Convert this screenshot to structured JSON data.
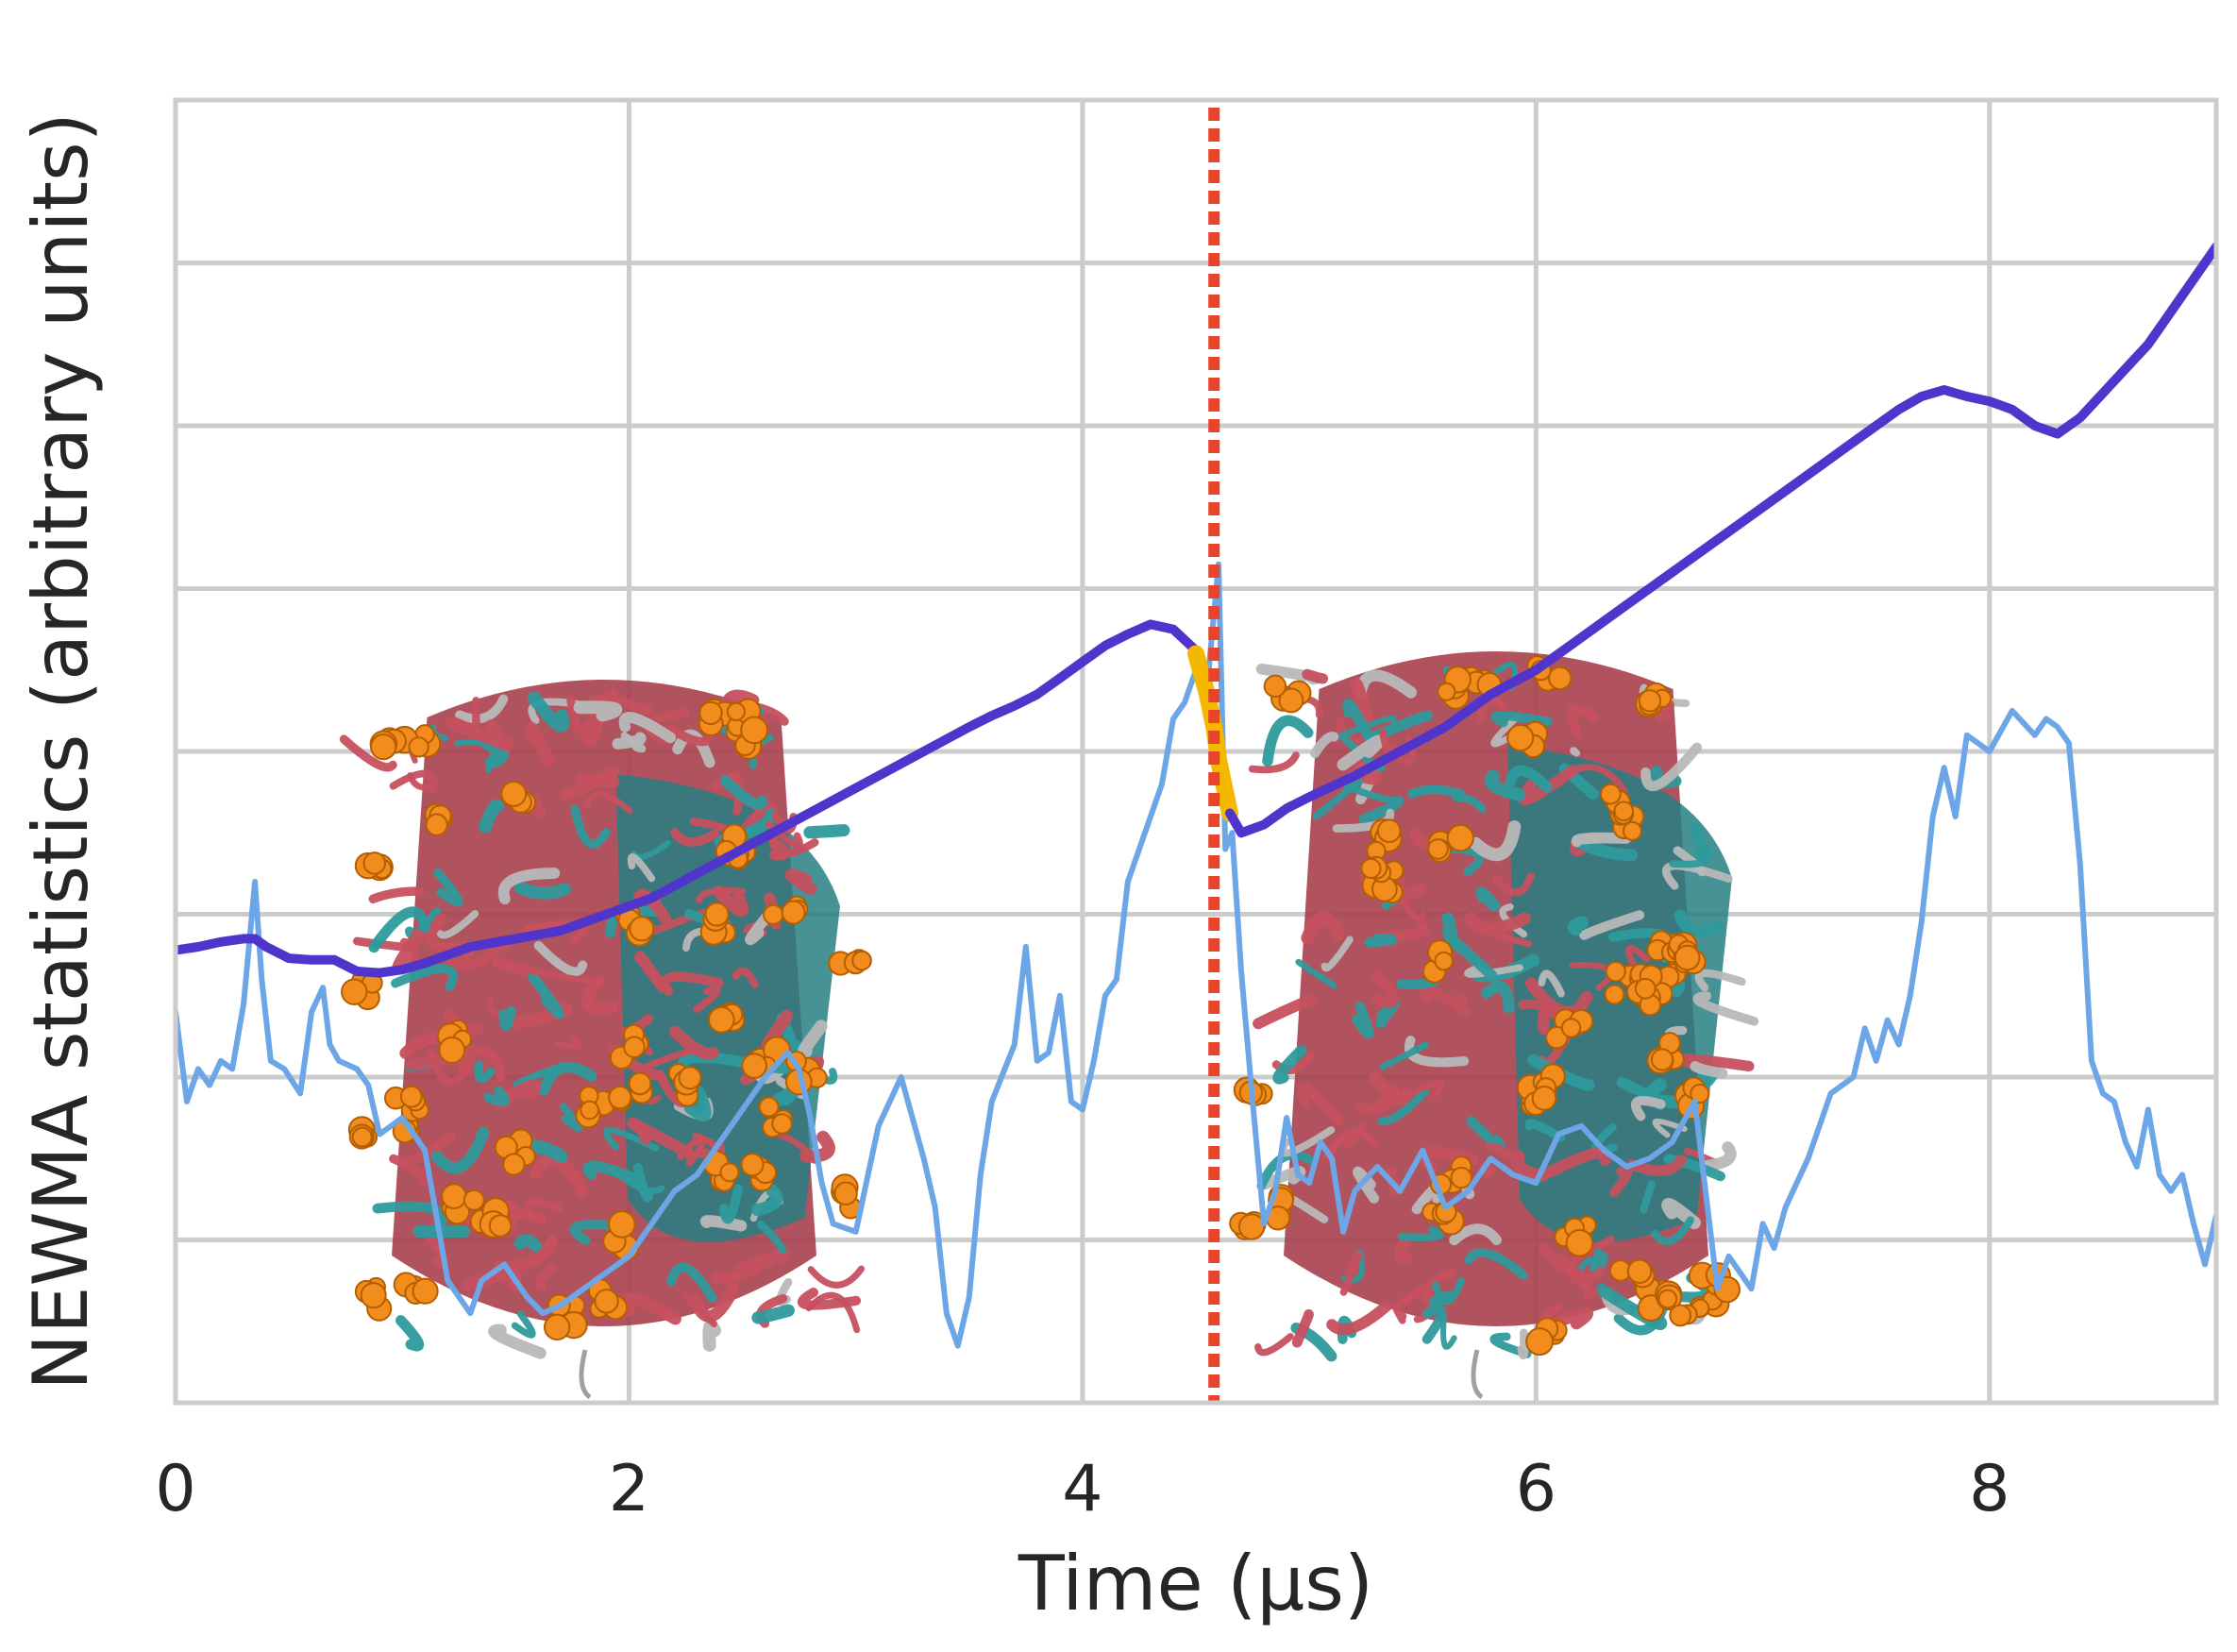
{
  "chart_data": {
    "type": "line",
    "title": "",
    "xlabel": "Time ($\\mu$s)",
    "ylabel": "NEWMA statistics (arbitrary units)",
    "xlim": [
      0,
      9
    ],
    "ylim": [
      0,
      8
    ],
    "xticks": [
      0,
      2,
      4,
      6,
      8
    ],
    "xtick_labels": [
      "0",
      "2",
      "4",
      "6",
      "8"
    ],
    "yticks": [
      0,
      1,
      2,
      3,
      4,
      5,
      6,
      7,
      8
    ],
    "ytick_labels": [],
    "grid": true,
    "legend": "none",
    "change_point": {
      "x": 4.58,
      "style": "dotted",
      "color": "#e8432b"
    },
    "series": [
      {
        "style": "thin",
        "color": "#6ca6e6",
        "x": [
          0.0,
          0.05,
          0.1,
          0.15,
          0.2,
          0.25,
          0.3,
          0.35,
          0.38,
          0.42,
          0.48,
          0.55,
          0.6,
          0.65,
          0.68,
          0.72,
          0.8,
          0.85,
          0.9,
          0.95,
          1.0,
          1.1,
          1.2,
          1.3,
          1.35,
          1.45,
          1.55,
          1.62,
          1.7,
          1.8,
          1.9,
          2.0,
          2.1,
          2.2,
          2.3,
          2.4,
          2.5,
          2.6,
          2.7,
          2.75,
          2.8,
          2.85,
          2.9,
          3.0,
          3.1,
          3.2,
          3.3,
          3.35,
          3.4,
          3.45,
          3.5,
          3.55,
          3.6,
          3.7,
          3.75,
          3.8,
          3.85,
          3.9,
          3.95,
          4.0,
          4.05,
          4.1,
          4.15,
          4.2,
          4.3,
          4.35,
          4.4,
          4.45,
          4.5,
          4.55,
          4.6,
          4.63,
          4.66,
          4.7,
          4.75,
          4.8,
          4.85,
          4.9,
          4.95,
          5.0,
          5.05,
          5.1,
          5.15,
          5.2,
          5.3,
          5.4,
          5.5,
          5.6,
          5.7,
          5.8,
          5.9,
          6.0,
          6.1,
          6.2,
          6.3,
          6.4,
          6.5,
          6.6,
          6.7,
          6.8,
          6.85,
          6.9,
          6.95,
          7.0,
          7.05,
          7.1,
          7.2,
          7.3,
          7.4,
          7.45,
          7.5,
          7.55,
          7.6,
          7.65,
          7.7,
          7.75,
          7.8,
          7.85,
          7.9,
          8.0,
          8.1,
          8.2,
          8.25,
          8.3,
          8.35,
          8.4,
          8.45,
          8.5,
          8.55,
          8.6,
          8.65,
          8.7,
          8.75,
          8.8,
          8.85,
          8.9,
          8.95,
          9.0
        ],
        "y": [
          2.4,
          1.85,
          2.05,
          1.95,
          2.1,
          2.05,
          2.45,
          3.2,
          2.6,
          2.1,
          2.05,
          1.9,
          2.4,
          2.55,
          2.2,
          2.1,
          2.05,
          1.95,
          1.65,
          1.7,
          1.75,
          1.55,
          0.75,
          0.55,
          0.75,
          0.85,
          0.65,
          0.55,
          0.6,
          0.7,
          0.8,
          0.9,
          1.1,
          1.3,
          1.4,
          1.6,
          1.8,
          2.0,
          2.15,
          2.05,
          1.75,
          1.35,
          1.1,
          1.05,
          1.7,
          2.0,
          1.5,
          1.2,
          0.55,
          0.35,
          0.65,
          1.4,
          1.85,
          2.2,
          2.8,
          2.1,
          2.15,
          2.5,
          1.85,
          1.8,
          2.1,
          2.5,
          2.6,
          3.2,
          3.6,
          3.8,
          4.2,
          4.3,
          4.5,
          4.4,
          5.15,
          3.4,
          3.5,
          2.65,
          1.85,
          1.1,
          1.3,
          1.75,
          1.4,
          1.35,
          1.6,
          1.5,
          1.05,
          1.3,
          1.45,
          1.3,
          1.55,
          1.2,
          1.3,
          1.5,
          1.4,
          1.35,
          1.65,
          1.7,
          1.55,
          1.45,
          1.5,
          1.6,
          1.85,
          0.7,
          0.9,
          0.8,
          0.7,
          1.1,
          0.95,
          1.2,
          1.5,
          1.9,
          2.0,
          2.3,
          2.1,
          2.35,
          2.2,
          2.5,
          2.95,
          3.6,
          3.9,
          3.6,
          4.1,
          4.0,
          4.25,
          4.1,
          4.2,
          4.15,
          4.05,
          3.3,
          2.1,
          1.9,
          1.85,
          1.6,
          1.45,
          1.8,
          1.4,
          1.3,
          1.4,
          1.1,
          0.85,
          1.15
        ]
      },
      {
        "style": "bold",
        "color": "#5035cc",
        "x": [
          0.0,
          0.1,
          0.2,
          0.3,
          0.35,
          0.4,
          0.5,
          0.6,
          0.7,
          0.8,
          0.9,
          1.0,
          1.1,
          1.2,
          1.3,
          1.5,
          1.7,
          1.9,
          2.1,
          2.3,
          2.5,
          2.7,
          2.9,
          3.1,
          3.3,
          3.5,
          3.6,
          3.7,
          3.8,
          3.9,
          4.0,
          4.1,
          4.2,
          4.3,
          4.4,
          4.5
        ],
        "y": [
          2.78,
          2.8,
          2.83,
          2.85,
          2.85,
          2.8,
          2.73,
          2.72,
          2.72,
          2.65,
          2.64,
          2.66,
          2.7,
          2.75,
          2.8,
          2.85,
          2.9,
          3.0,
          3.1,
          3.25,
          3.4,
          3.55,
          3.7,
          3.85,
          4.0,
          4.15,
          4.22,
          4.28,
          4.35,
          4.45,
          4.55,
          4.65,
          4.72,
          4.78,
          4.75,
          4.62
        ]
      },
      {
        "style": "bold",
        "color": "#f5b800",
        "x": [
          4.5,
          4.55,
          4.58,
          4.6,
          4.63,
          4.65
        ],
        "y": [
          4.6,
          4.35,
          4.15,
          3.95,
          3.75,
          3.62
        ]
      },
      {
        "style": "bold",
        "color": "#5035cc",
        "x": [
          4.65,
          4.7,
          4.8,
          4.9,
          5.0,
          5.2,
          5.4,
          5.6,
          5.8,
          6.0,
          6.2,
          6.4,
          6.6,
          6.8,
          7.0,
          7.2,
          7.4,
          7.5,
          7.6,
          7.7,
          7.8,
          7.9,
          8.0,
          8.1,
          8.2,
          8.3,
          8.4,
          8.5,
          8.6,
          8.7,
          8.8,
          8.9,
          9.0
        ],
        "y": [
          3.62,
          3.5,
          3.55,
          3.65,
          3.72,
          3.85,
          4.0,
          4.15,
          4.35,
          4.5,
          4.7,
          4.9,
          5.1,
          5.3,
          5.5,
          5.7,
          5.9,
          6.0,
          6.1,
          6.18,
          6.22,
          6.18,
          6.15,
          6.1,
          6.0,
          5.95,
          6.05,
          6.2,
          6.35,
          6.5,
          6.7,
          6.9,
          7.1
        ]
      }
    ]
  }
}
